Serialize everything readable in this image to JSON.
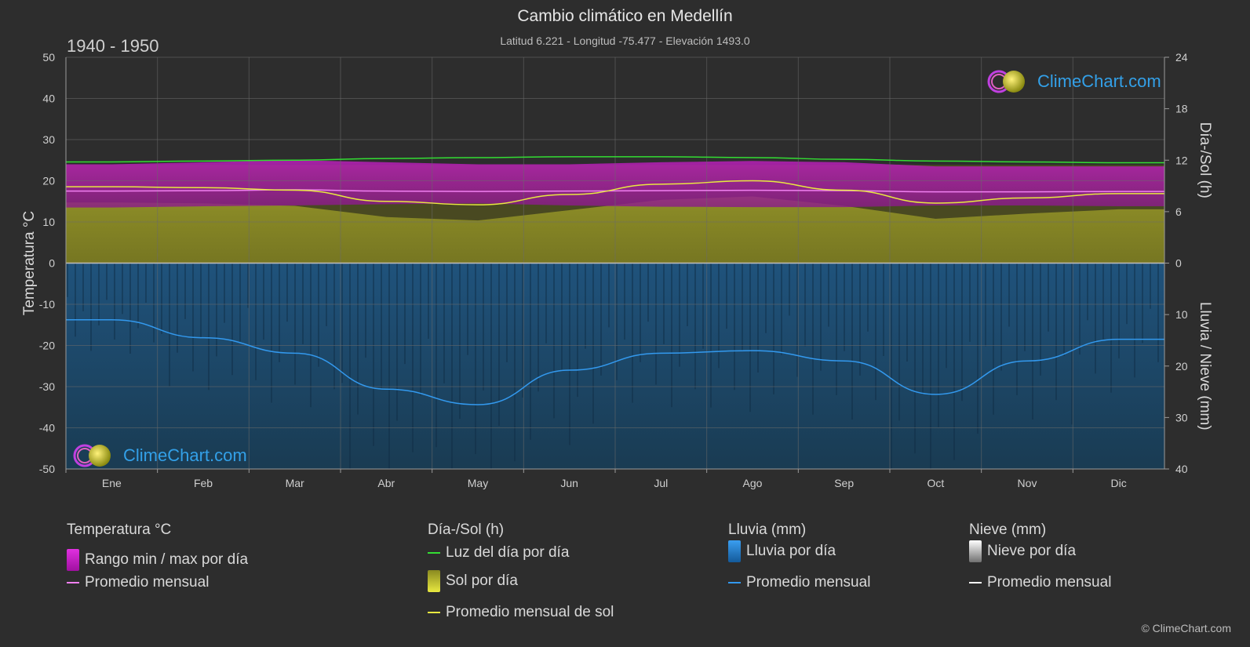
{
  "header": {
    "title": "Cambio climático en Medellín",
    "subtitle": "Latitud 6.221 - Longitud -75.477 - Elevación 1493.0",
    "period": "1940 - 1950"
  },
  "copyright": "© ClimeChart.com",
  "logo": {
    "text": "ClimeChart.com"
  },
  "chart_data": {
    "type": "area",
    "xlabel": "",
    "months": [
      "Ene",
      "Feb",
      "Mar",
      "Abr",
      "May",
      "Jun",
      "Jul",
      "Ago",
      "Sep",
      "Oct",
      "Nov",
      "Dic"
    ],
    "left_axis": {
      "label": "Temperatura °C",
      "range": [
        -50,
        50
      ],
      "ticks": [
        50,
        40,
        30,
        20,
        10,
        0,
        -10,
        -20,
        -30,
        -40,
        -50
      ]
    },
    "right_axis_top": {
      "label": "Día-/Sol (h)",
      "range": [
        0,
        24
      ],
      "ticks": [
        24,
        18,
        12,
        6,
        0
      ]
    },
    "right_axis_bottom": {
      "label": "Lluvia / Nieve (mm)",
      "range": [
        0,
        40
      ],
      "ticks": [
        0,
        10,
        20,
        30,
        40
      ]
    },
    "grid": true,
    "series": [
      {
        "name": "Luz del día por día",
        "axis": "sun_hours",
        "values": [
          11.8,
          11.9,
          12.0,
          12.2,
          12.3,
          12.4,
          12.4,
          12.3,
          12.1,
          11.9,
          11.8,
          11.7
        ]
      },
      {
        "name": "Promedio mensual de sol",
        "axis": "sun_hours",
        "values": [
          8.9,
          8.8,
          8.5,
          7.2,
          6.8,
          8.0,
          9.2,
          9.6,
          8.5,
          7.0,
          7.6,
          8.1
        ]
      },
      {
        "name": "Promedio mensual",
        "axis": "temperature",
        "values": [
          17.5,
          17.6,
          17.8,
          17.5,
          17.4,
          17.5,
          17.6,
          17.7,
          17.6,
          17.3,
          17.3,
          17.4
        ]
      },
      {
        "name": "Rango min / max por día",
        "axis": "temperature",
        "min": [
          13.5,
          13.8,
          14.0,
          14.3,
          14.5,
          14.0,
          13.7,
          13.6,
          13.6,
          14.0,
          14.0,
          13.8
        ],
        "max": [
          24.0,
          24.5,
          25.0,
          24.5,
          24.0,
          24.0,
          24.5,
          24.8,
          24.5,
          23.5,
          23.5,
          23.5
        ]
      },
      {
        "name": "Promedio mensual",
        "axis": "rain_mm",
        "values": [
          11.0,
          14.5,
          17.5,
          24.5,
          27.5,
          20.8,
          17.5,
          17.0,
          19.0,
          25.5,
          19.0,
          14.8
        ]
      }
    ]
  },
  "legend": {
    "groups": [
      {
        "title": "Temperatura °C",
        "items": [
          {
            "label": "Rango min / max por día",
            "kind": "box",
            "color": "#d020d0"
          },
          {
            "label": "Promedio mensual",
            "kind": "line",
            "color": "#f080f0"
          }
        ]
      },
      {
        "title": "Día-/Sol (h)",
        "items": [
          {
            "label": "Luz del día por día",
            "kind": "line",
            "color": "#33dd33"
          },
          {
            "label": "Sol por día",
            "kind": "box",
            "color": "#c8c832"
          },
          {
            "label": "Promedio mensual de sol",
            "kind": "line",
            "color": "#e8e840"
          }
        ]
      },
      {
        "title": "Lluvia (mm)",
        "items": [
          {
            "label": "Lluvia por día",
            "kind": "box",
            "color": "#1e7ad0"
          },
          {
            "label": "Promedio mensual",
            "kind": "line",
            "color": "#3399ee"
          }
        ]
      },
      {
        "title": "Nieve (mm)",
        "items": [
          {
            "label": "Nieve por día",
            "kind": "box",
            "color": "#d8d8d8"
          },
          {
            "label": "Promedio mensual",
            "kind": "line",
            "color": "#ffffff"
          }
        ]
      }
    ]
  }
}
